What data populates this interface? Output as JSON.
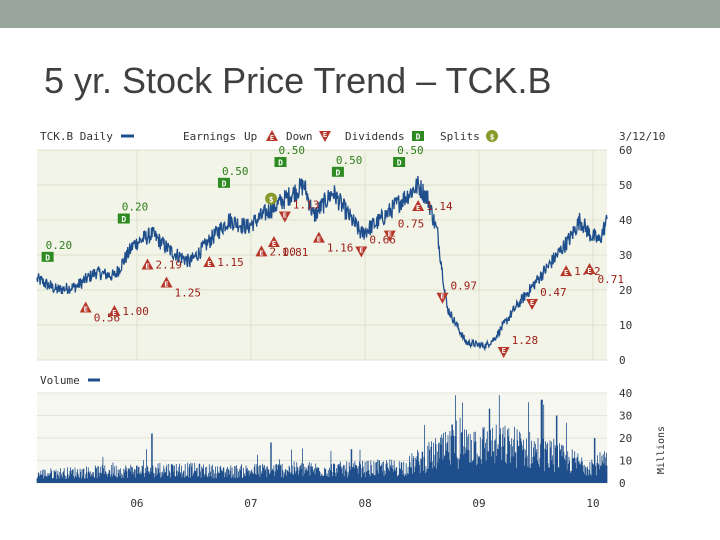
{
  "slide": {
    "title": "5 yr. Stock Price Trend – TCK.B",
    "topbar_color": "#98a59c"
  },
  "chart_data": [
    {
      "type": "line",
      "title": "",
      "legend": {
        "series_label": "TCK.B Daily",
        "earnings_label": "Earnings",
        "up_label": "Up",
        "down_label": "Down",
        "dividends_label": "Dividends",
        "splits_label": "Splits",
        "dividend_glyph": "D",
        "earnings_glyph": "E",
        "split_glyph": "$"
      },
      "date_label": "3/12/10",
      "x_ticks": [
        "06",
        "07",
        "08",
        "09",
        "10"
      ],
      "y_ticks": [
        0,
        10,
        20,
        30,
        40,
        50,
        60
      ],
      "ylim": [
        0,
        60
      ],
      "grid": true,
      "series_points": [
        [
          "2005-03-15",
          23
        ],
        [
          "2005-05-15",
          20
        ],
        [
          "2005-07-15",
          21
        ],
        [
          "2005-09-15",
          25
        ],
        [
          "2005-11-15",
          24
        ],
        [
          "2006-01-15",
          33
        ],
        [
          "2006-03-15",
          36
        ],
        [
          "2006-05-15",
          31
        ],
        [
          "2006-07-15",
          28
        ],
        [
          "2006-09-15",
          34
        ],
        [
          "2006-11-15",
          40
        ],
        [
          "2007-01-15",
          38
        ],
        [
          "2007-03-15",
          42
        ],
        [
          "2007-05-15",
          46
        ],
        [
          "2007-07-15",
          50
        ],
        [
          "2007-08-15",
          41
        ],
        [
          "2007-10-15",
          48
        ],
        [
          "2007-12-15",
          40
        ],
        [
          "2008-01-15",
          36
        ],
        [
          "2008-03-15",
          40
        ],
        [
          "2008-05-15",
          45
        ],
        [
          "2008-07-15",
          50
        ],
        [
          "2008-08-15",
          46
        ],
        [
          "2008-09-15",
          36
        ],
        [
          "2008-10-15",
          15
        ],
        [
          "2008-12-15",
          5
        ],
        [
          "2009-02-15",
          4
        ],
        [
          "2009-03-15",
          6
        ],
        [
          "2009-05-15",
          14
        ],
        [
          "2009-07-15",
          21
        ],
        [
          "2009-09-15",
          28
        ],
        [
          "2009-11-15",
          35
        ],
        [
          "2009-12-15",
          40
        ],
        [
          "2010-01-15",
          36
        ],
        [
          "2010-02-15",
          34
        ],
        [
          "2010-03-12",
          40
        ]
      ],
      "events": [
        {
          "kind": "dividend",
          "label": "0.20",
          "date": "2005-04-15"
        },
        {
          "kind": "up",
          "label": "0.56",
          "date": "2005-08-15"
        },
        {
          "kind": "up",
          "label": "1.00",
          "date": "2005-11-15"
        },
        {
          "kind": "dividend",
          "label": "0.20",
          "date": "2005-12-15"
        },
        {
          "kind": "up",
          "label": "2.19",
          "date": "2006-03-01"
        },
        {
          "kind": "up",
          "label": "1.25",
          "date": "2006-05-01"
        },
        {
          "kind": "up",
          "label": "1.15",
          "date": "2006-09-15"
        },
        {
          "kind": "dividend",
          "label": "0.50",
          "date": "2006-11-01"
        },
        {
          "kind": "up",
          "label": "2.00",
          "date": "2007-03-01"
        },
        {
          "kind": "dividend",
          "label": "0.50",
          "date": "2007-05-01"
        },
        {
          "kind": "split",
          "label": "",
          "date": "2007-04-01"
        },
        {
          "kind": "up",
          "label": "1.81",
          "date": "2007-04-10"
        },
        {
          "kind": "down",
          "label": "1.13",
          "date": "2007-05-15"
        },
        {
          "kind": "up",
          "label": "1.16",
          "date": "2007-09-01"
        },
        {
          "kind": "dividend",
          "label": "0.50",
          "date": "2007-11-01"
        },
        {
          "kind": "down",
          "label": "0.66",
          "date": "2008-01-15"
        },
        {
          "kind": "down",
          "label": "0.75",
          "date": "2008-04-15"
        },
        {
          "kind": "dividend",
          "label": "0.50",
          "date": "2008-05-15"
        },
        {
          "kind": "up",
          "label": "1.14",
          "date": "2008-07-15"
        },
        {
          "kind": "down",
          "label": "0.97",
          "date": "2008-10-01"
        },
        {
          "kind": "down",
          "label": "1.28",
          "date": "2009-04-15"
        },
        {
          "kind": "down",
          "label": "0.47",
          "date": "2009-07-15"
        },
        {
          "kind": "up",
          "label": "1.02",
          "date": "2009-11-01"
        },
        {
          "kind": "up",
          "label": "0.71",
          "date": "2010-01-15"
        }
      ],
      "colors": {
        "line": "#1f4e8c",
        "plot_bg": "#f2f4e8",
        "grid": "#dde1cc",
        "label_red": "#9b1d16",
        "label_green": "#2f7d1a",
        "event_red": "#b5372a",
        "event_green": "#2e8b22"
      }
    },
    {
      "type": "bar",
      "title": "",
      "legend_label": "Volume",
      "ylabel": "Millions",
      "y_ticks": [
        0,
        10,
        20,
        30,
        40
      ],
      "ylim": [
        0,
        40
      ],
      "volume_profile": [
        [
          "2005-03-12",
          4
        ],
        [
          "2005-10-01",
          5
        ],
        [
          "2006-06-01",
          6
        ],
        [
          "2006-11-01",
          5
        ],
        [
          "2007-06-01",
          6
        ],
        [
          "2007-12-01",
          6
        ],
        [
          "2008-06-01",
          7
        ],
        [
          "2008-10-01",
          14
        ],
        [
          "2009-01-01",
          17
        ],
        [
          "2009-06-01",
          16
        ],
        [
          "2010-01-01",
          8
        ],
        [
          "2010-03-12",
          9
        ]
      ],
      "volume_spikes": [
        [
          "2006-03-15",
          22
        ],
        [
          "2007-04-01",
          18
        ],
        [
          "2007-12-15",
          15
        ],
        [
          "2008-11-01",
          26
        ],
        [
          "2009-03-01",
          33
        ],
        [
          "2009-08-15",
          37
        ],
        [
          "2009-10-01",
          30
        ],
        [
          "2010-02-01",
          20
        ]
      ],
      "colors": {
        "bars": "#1f4e8c"
      }
    }
  ]
}
